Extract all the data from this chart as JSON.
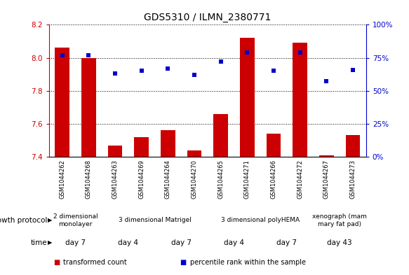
{
  "title": "GDS5310 / ILMN_2380771",
  "samples": [
    "GSM1044262",
    "GSM1044268",
    "GSM1044263",
    "GSM1044269",
    "GSM1044264",
    "GSM1044270",
    "GSM1044265",
    "GSM1044271",
    "GSM1044266",
    "GSM1044272",
    "GSM1044267",
    "GSM1044273"
  ],
  "bar_values": [
    8.06,
    8.0,
    7.47,
    7.52,
    7.56,
    7.44,
    7.66,
    8.12,
    7.54,
    8.09,
    7.41,
    7.53
  ],
  "dot_values": [
    77,
    77,
    63,
    65,
    67,
    62,
    72,
    79,
    65,
    79,
    57,
    66
  ],
  "ylim_left": [
    7.4,
    8.2
  ],
  "ylim_right": [
    0,
    100
  ],
  "yticks_left": [
    7.4,
    7.6,
    7.8,
    8.0,
    8.2
  ],
  "yticks_right": [
    0,
    25,
    50,
    75,
    100
  ],
  "bar_color": "#cc0000",
  "dot_color": "#0000cc",
  "tick_bg_color": "#c8c8c8",
  "growth_bg": "#90ee90",
  "time_bg": "#ee82ee",
  "white": "#ffffff",
  "black": "#000000",
  "left_axis_color": "#cc0000",
  "right_axis_color": "#0000cc",
  "growth_protocol_groups": [
    {
      "label": "2 dimensional\nmonolayer",
      "start": 0,
      "end": 2
    },
    {
      "label": "3 dimensional Matrigel",
      "start": 2,
      "end": 6
    },
    {
      "label": "3 dimensional polyHEMA",
      "start": 6,
      "end": 10
    },
    {
      "label": "xenograph (mam\nmary fat pad)",
      "start": 10,
      "end": 12
    }
  ],
  "time_groups": [
    {
      "label": "day 7",
      "start": 0,
      "end": 2
    },
    {
      "label": "day 4",
      "start": 2,
      "end": 4
    },
    {
      "label": "day 7",
      "start": 4,
      "end": 6
    },
    {
      "label": "day 4",
      "start": 6,
      "end": 8
    },
    {
      "label": "day 7",
      "start": 8,
      "end": 10
    },
    {
      "label": "day 43",
      "start": 10,
      "end": 12
    }
  ],
  "legend_items": [
    {
      "label": "transformed count",
      "color": "#cc0000"
    },
    {
      "label": "percentile rank within the sample",
      "color": "#0000cc"
    }
  ],
  "title_fontsize": 10,
  "tick_fontsize": 6.5,
  "sample_fontsize": 6,
  "row_fontsize": 7.5,
  "legend_fontsize": 7,
  "side_label_fontsize": 7.5
}
